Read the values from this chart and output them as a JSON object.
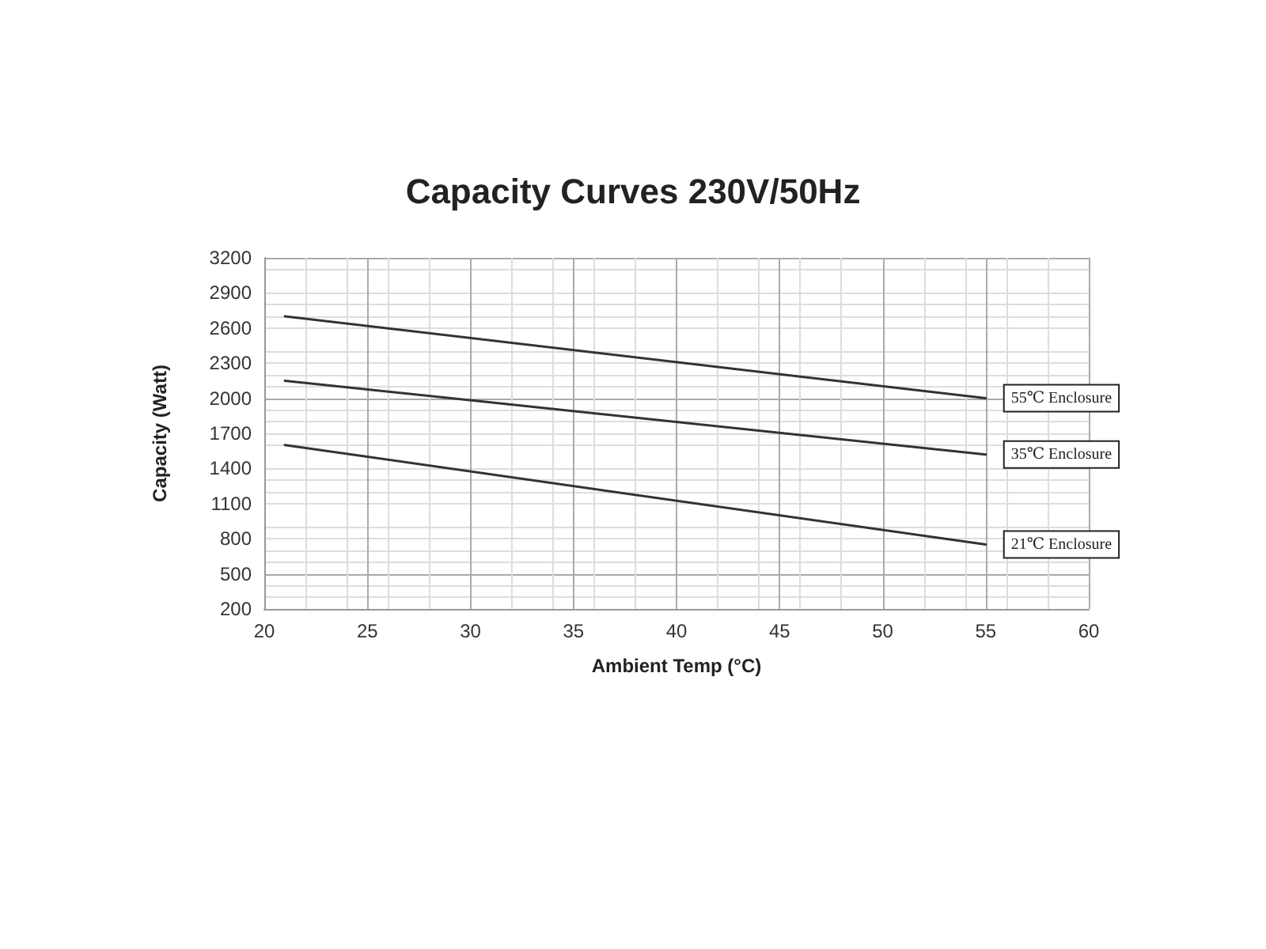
{
  "chart_data": {
    "type": "line",
    "title": "Capacity Curves 230V/50Hz",
    "xlabel": "Ambient Temp (°C)",
    "ylabel": "Capacity (Watt)",
    "x": [
      21,
      55
    ],
    "series": [
      {
        "name": "55℃ Enclosure",
        "color": "#333333",
        "values": [
          2700,
          2000
        ]
      },
      {
        "name": "35℃ Enclosure",
        "color": "#333333",
        "values": [
          2150,
          1520
        ]
      },
      {
        "name": "21℃ Enclosure",
        "color": "#333333",
        "values": [
          1600,
          750
        ]
      }
    ],
    "xlim": [
      20,
      60
    ],
    "xticks": [
      20,
      25,
      30,
      35,
      40,
      45,
      50,
      55,
      60
    ],
    "ylim": [
      200,
      3200
    ],
    "yticks": [
      200,
      500,
      800,
      1100,
      1400,
      1700,
      2000,
      2300,
      2600,
      2900,
      3200
    ],
    "grid": true,
    "legend": false,
    "marker": "none",
    "line_style": "solid"
  }
}
